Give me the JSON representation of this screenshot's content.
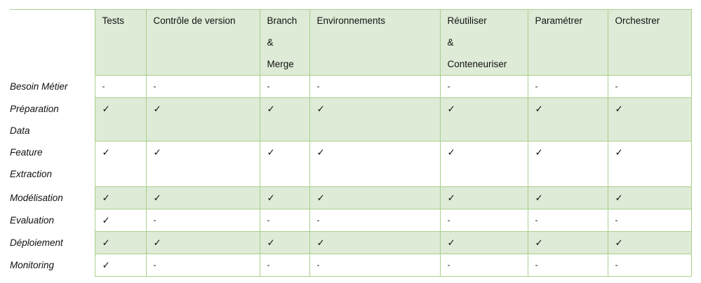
{
  "table": {
    "headers": [
      "Tests",
      "Contrôle de version",
      "Branch\n&\nMerge",
      "Environnements",
      "Réutiliser\n&\nConteneuriser",
      "Paramétrer",
      "Orchestrer"
    ],
    "rows": [
      {
        "label": "Besoin Métier",
        "cells": [
          "-",
          "-",
          "-",
          "-",
          "-",
          "-",
          "-"
        ]
      },
      {
        "label": "Préparation Data",
        "cells": [
          "✓",
          "✓",
          "✓",
          "✓",
          "✓",
          "✓",
          "✓"
        ]
      },
      {
        "label": "Feature Extraction",
        "cells": [
          "✓",
          "✓",
          "✓",
          "✓",
          "✓",
          "✓",
          "✓"
        ]
      },
      {
        "label": "Modélisation",
        "cells": [
          "✓",
          "✓",
          "✓",
          "✓",
          "✓",
          "✓",
          "✓"
        ]
      },
      {
        "label": "Evaluation",
        "cells": [
          "✓",
          "-",
          "-",
          "-",
          "-",
          "-",
          "-"
        ]
      },
      {
        "label": "Déploiement",
        "cells": [
          "✓",
          "✓",
          "✓",
          "✓",
          "✓",
          "✓",
          "✓"
        ]
      },
      {
        "label": "Monitoring",
        "cells": [
          "✓",
          "-",
          "-",
          "-",
          "-",
          "-",
          "-"
        ]
      }
    ]
  },
  "colors": {
    "header_fill": "#deebd6",
    "border": "#a8d08d"
  }
}
